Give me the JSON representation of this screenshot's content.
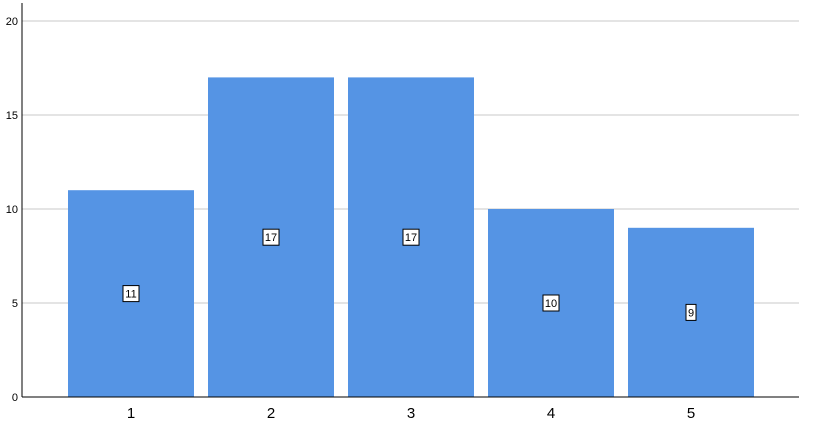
{
  "chart_data": {
    "type": "bar",
    "categories": [
      "1",
      "2",
      "3",
      "4",
      "5"
    ],
    "values": [
      11,
      17,
      17,
      10,
      9
    ],
    "data_labels": [
      "11",
      "17",
      "17",
      "10",
      "9"
    ],
    "ylim": [
      0,
      20
    ],
    "yticks": [
      "0",
      "5",
      "10",
      "15",
      "20"
    ],
    "grid": true,
    "legend": "none",
    "title": "",
    "xlabel": "",
    "ylabel": "",
    "colors": {
      "bar": "#5594e4",
      "grid": "#c8c8c8",
      "axis": "#000000",
      "label_box_bg": "#ffffff",
      "label_box_border": "#000000"
    }
  }
}
